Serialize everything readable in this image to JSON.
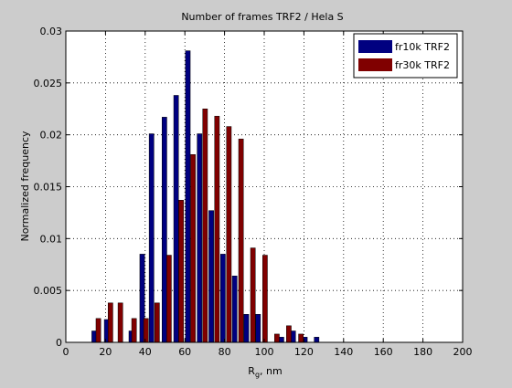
{
  "chart_data": {
    "type": "bar",
    "title": "Number of frames TRF2 / Hela S",
    "xlabel": "R",
    "xlabel_sub": "g",
    "xlabel_suffix": ", nm",
    "ylabel": "Normalized frequency",
    "xlim": [
      0,
      200
    ],
    "ylim": [
      0,
      0.03
    ],
    "xticks": [
      0,
      20,
      40,
      60,
      80,
      100,
      120,
      140,
      160,
      180,
      200
    ],
    "yticks": [
      0,
      0.005,
      0.01,
      0.015,
      0.02,
      0.025,
      0.03
    ],
    "xtick_labels": [
      "0",
      "20",
      "40",
      "60",
      "80",
      "100",
      "120",
      "140",
      "160",
      "180",
      "200"
    ],
    "ytick_labels": [
      "0",
      "0.005",
      "0.01",
      "0.015",
      "0.02",
      "0.025",
      "0.03"
    ],
    "grid": true,
    "legend_position": "top-right",
    "series": [
      {
        "name": "fr10k TRF2",
        "color": "#000080",
        "points": [
          [
            14.3,
            0.0011
          ],
          [
            20.6,
            0.0022
          ],
          [
            27.1,
            0.0
          ],
          [
            33.0,
            0.0011
          ],
          [
            38.5,
            0.0085
          ],
          [
            43.2,
            0.0201
          ],
          [
            49.7,
            0.0217
          ],
          [
            55.6,
            0.0238
          ],
          [
            61.5,
            0.0281
          ],
          [
            67.4,
            0.0201
          ],
          [
            73.3,
            0.0127
          ],
          [
            79.2,
            0.0085
          ],
          [
            85.1,
            0.0064
          ],
          [
            91.0,
            0.0027
          ],
          [
            96.9,
            0.0027
          ],
          [
            102.8,
            0.0
          ],
          [
            108.7,
            0.0005
          ],
          [
            114.6,
            0.0011
          ],
          [
            120.5,
            0.0005
          ],
          [
            126.4,
            0.0005
          ]
        ]
      },
      {
        "name": "fr30k TRF2",
        "color": "#800000",
        "points": [
          [
            16.4,
            0.0023
          ],
          [
            22.5,
            0.0038
          ],
          [
            27.5,
            0.0038
          ],
          [
            34.4,
            0.0023
          ],
          [
            40.4,
            0.0023
          ],
          [
            46.0,
            0.0038
          ],
          [
            52.0,
            0.0084
          ],
          [
            58.1,
            0.0137
          ],
          [
            64.1,
            0.0181
          ],
          [
            70.2,
            0.0225
          ],
          [
            76.2,
            0.0218
          ],
          [
            82.2,
            0.0208
          ],
          [
            88.3,
            0.0196
          ],
          [
            94.3,
            0.0091
          ],
          [
            100.4,
            0.0084
          ],
          [
            106.4,
            0.0008
          ],
          [
            112.4,
            0.0016
          ],
          [
            118.5,
            0.0008
          ]
        ]
      }
    ]
  }
}
